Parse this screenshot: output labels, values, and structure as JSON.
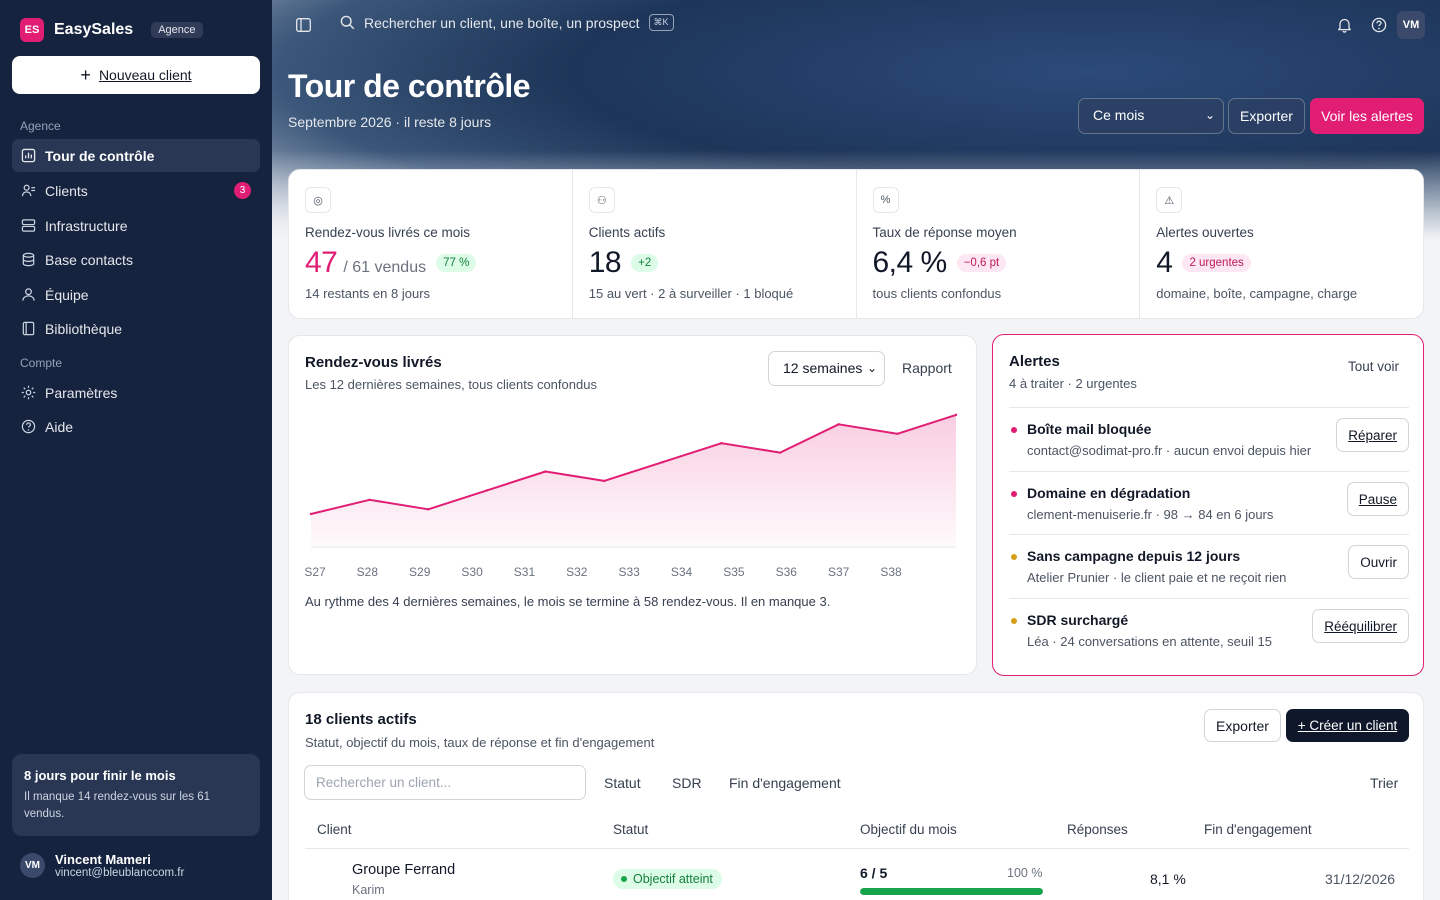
{
  "brand": {
    "logo": "ES",
    "name": "EasySales",
    "badge": "Agence"
  },
  "sidebar": {
    "new_client": "Nouveau client",
    "section_agence": "Agence",
    "section_compte": "Compte",
    "items": [
      {
        "label": "Tour de contrôle",
        "icon": "dashboard-icon",
        "active": true
      },
      {
        "label": "Clients",
        "icon": "users-icon",
        "count": "3"
      },
      {
        "label": "Infrastructure",
        "icon": "server-icon"
      },
      {
        "label": "Base contacts",
        "icon": "database-icon"
      },
      {
        "label": "Équipe",
        "icon": "user-icon"
      },
      {
        "label": "Bibliothèque",
        "icon": "book-icon"
      },
      {
        "label": "Paramètres",
        "icon": "settings-icon"
      },
      {
        "label": "Aide",
        "icon": "help-icon"
      }
    ],
    "month_card": {
      "title": "8 jours pour finir le mois",
      "text": "Il manque 14 rendez-vous sur les 61 vendus."
    },
    "user": {
      "initials": "VM",
      "name": "Vincent Mameri",
      "email": "vincent@bleublanccom.fr"
    }
  },
  "topbar": {
    "search_placeholder": "Rechercher un client, une boîte, un prospect",
    "shortcut": "⌘K",
    "avatar": "VM"
  },
  "header": {
    "title": "Tour de contrôle",
    "subtitle": "Septembre 2026 · il reste 8 jours",
    "period": "Ce mois",
    "export": "Exporter",
    "alerts": "Voir les alertes"
  },
  "kpis": [
    {
      "icon": "target-icon",
      "label": "Rendez-vous livrés ce mois",
      "value": "47",
      "of": "/ 61 vendus",
      "pill": "77 %",
      "foot": "14 restants en 8 jours"
    },
    {
      "icon": "users-icon",
      "label": "Clients actifs",
      "value": "18",
      "pill": "+2",
      "foot": "15 au vert · 2 à surveiller · 1 bloqué"
    },
    {
      "icon": "percent-icon",
      "label": "Taux de réponse moyen",
      "value": "6,4 %",
      "pill": "−0,6 pt",
      "foot": "tous clients confondus"
    },
    {
      "icon": "warning-icon",
      "label": "Alertes ouvertes",
      "value": "4",
      "pill": "2 urgentes",
      "foot": "domaine, boîte, campagne, charge"
    }
  ],
  "chart_card": {
    "title": "Rendez-vous livrés",
    "subtitle": "Les 12 dernières semaines, tous clients confondus",
    "range": "12 semaines",
    "report": "Rapport",
    "note": "Au rythme des 4 dernières semaines, le mois se termine à 58 rendez-vous. Il en manque 3."
  },
  "chart_data": {
    "type": "area",
    "title": "Rendez-vous livrés",
    "categories": [
      "S27",
      "S28",
      "S29",
      "S30",
      "S31",
      "S32",
      "S33",
      "S34",
      "S35",
      "S36",
      "S37",
      "S38"
    ],
    "series": [
      {
        "values": [
          2,
          5,
          3,
          7,
          11,
          9,
          13,
          17,
          15,
          21,
          19,
          23
        ]
      }
    ],
    "ylim": [
      -5,
      27
    ],
    "grid": false,
    "color": "#e11d74"
  },
  "alerts_card": {
    "title": "Alertes",
    "subtitle": "4 à traiter · 2 urgentes",
    "see_all": "Tout voir",
    "items": [
      {
        "title": "Boîte mail bloquée",
        "desc": "contact@sodimat-pro.fr · aucun envoi depuis hier",
        "action": "Réparer",
        "color": "#e11d74"
      },
      {
        "title": "Domaine en dégradation",
        "desc": "clement-menuiserie.fr · 98 → 84 en 6 jours",
        "action": "Pause",
        "color": "#e11d74"
      },
      {
        "title": "Sans campagne depuis 12 jours",
        "desc": "Atelier Prunier · le client paie et ne reçoit rien",
        "action": "Ouvrir",
        "color": "#d4a017"
      },
      {
        "title": "SDR surchargé",
        "desc": "Léa · 24 conversations en attente, seuil 15",
        "action": "Rééquilibrer",
        "color": "#d4a017"
      }
    ]
  },
  "clients": {
    "title": "18 clients actifs",
    "subtitle": "Statut, objectif du mois, taux de réponse et fin d'engagement",
    "export": "Exporter",
    "create": "+ Créer un client",
    "search_placeholder": "Rechercher un client...",
    "filters": [
      "Statut",
      "SDR",
      "Fin d'engagement"
    ],
    "sort": "Trier",
    "columns": [
      "Client",
      "Statut",
      "Objectif du mois",
      "Réponses",
      "Fin d'engagement"
    ],
    "rows": [
      {
        "name": "Groupe Ferrand",
        "owner": "Karim",
        "status": "Objectif atteint",
        "objective": "6 / 5",
        "objective_pct": "100 %",
        "progress": 1.0,
        "responses": "8,1 %",
        "end": "31/12/2026"
      }
    ]
  }
}
